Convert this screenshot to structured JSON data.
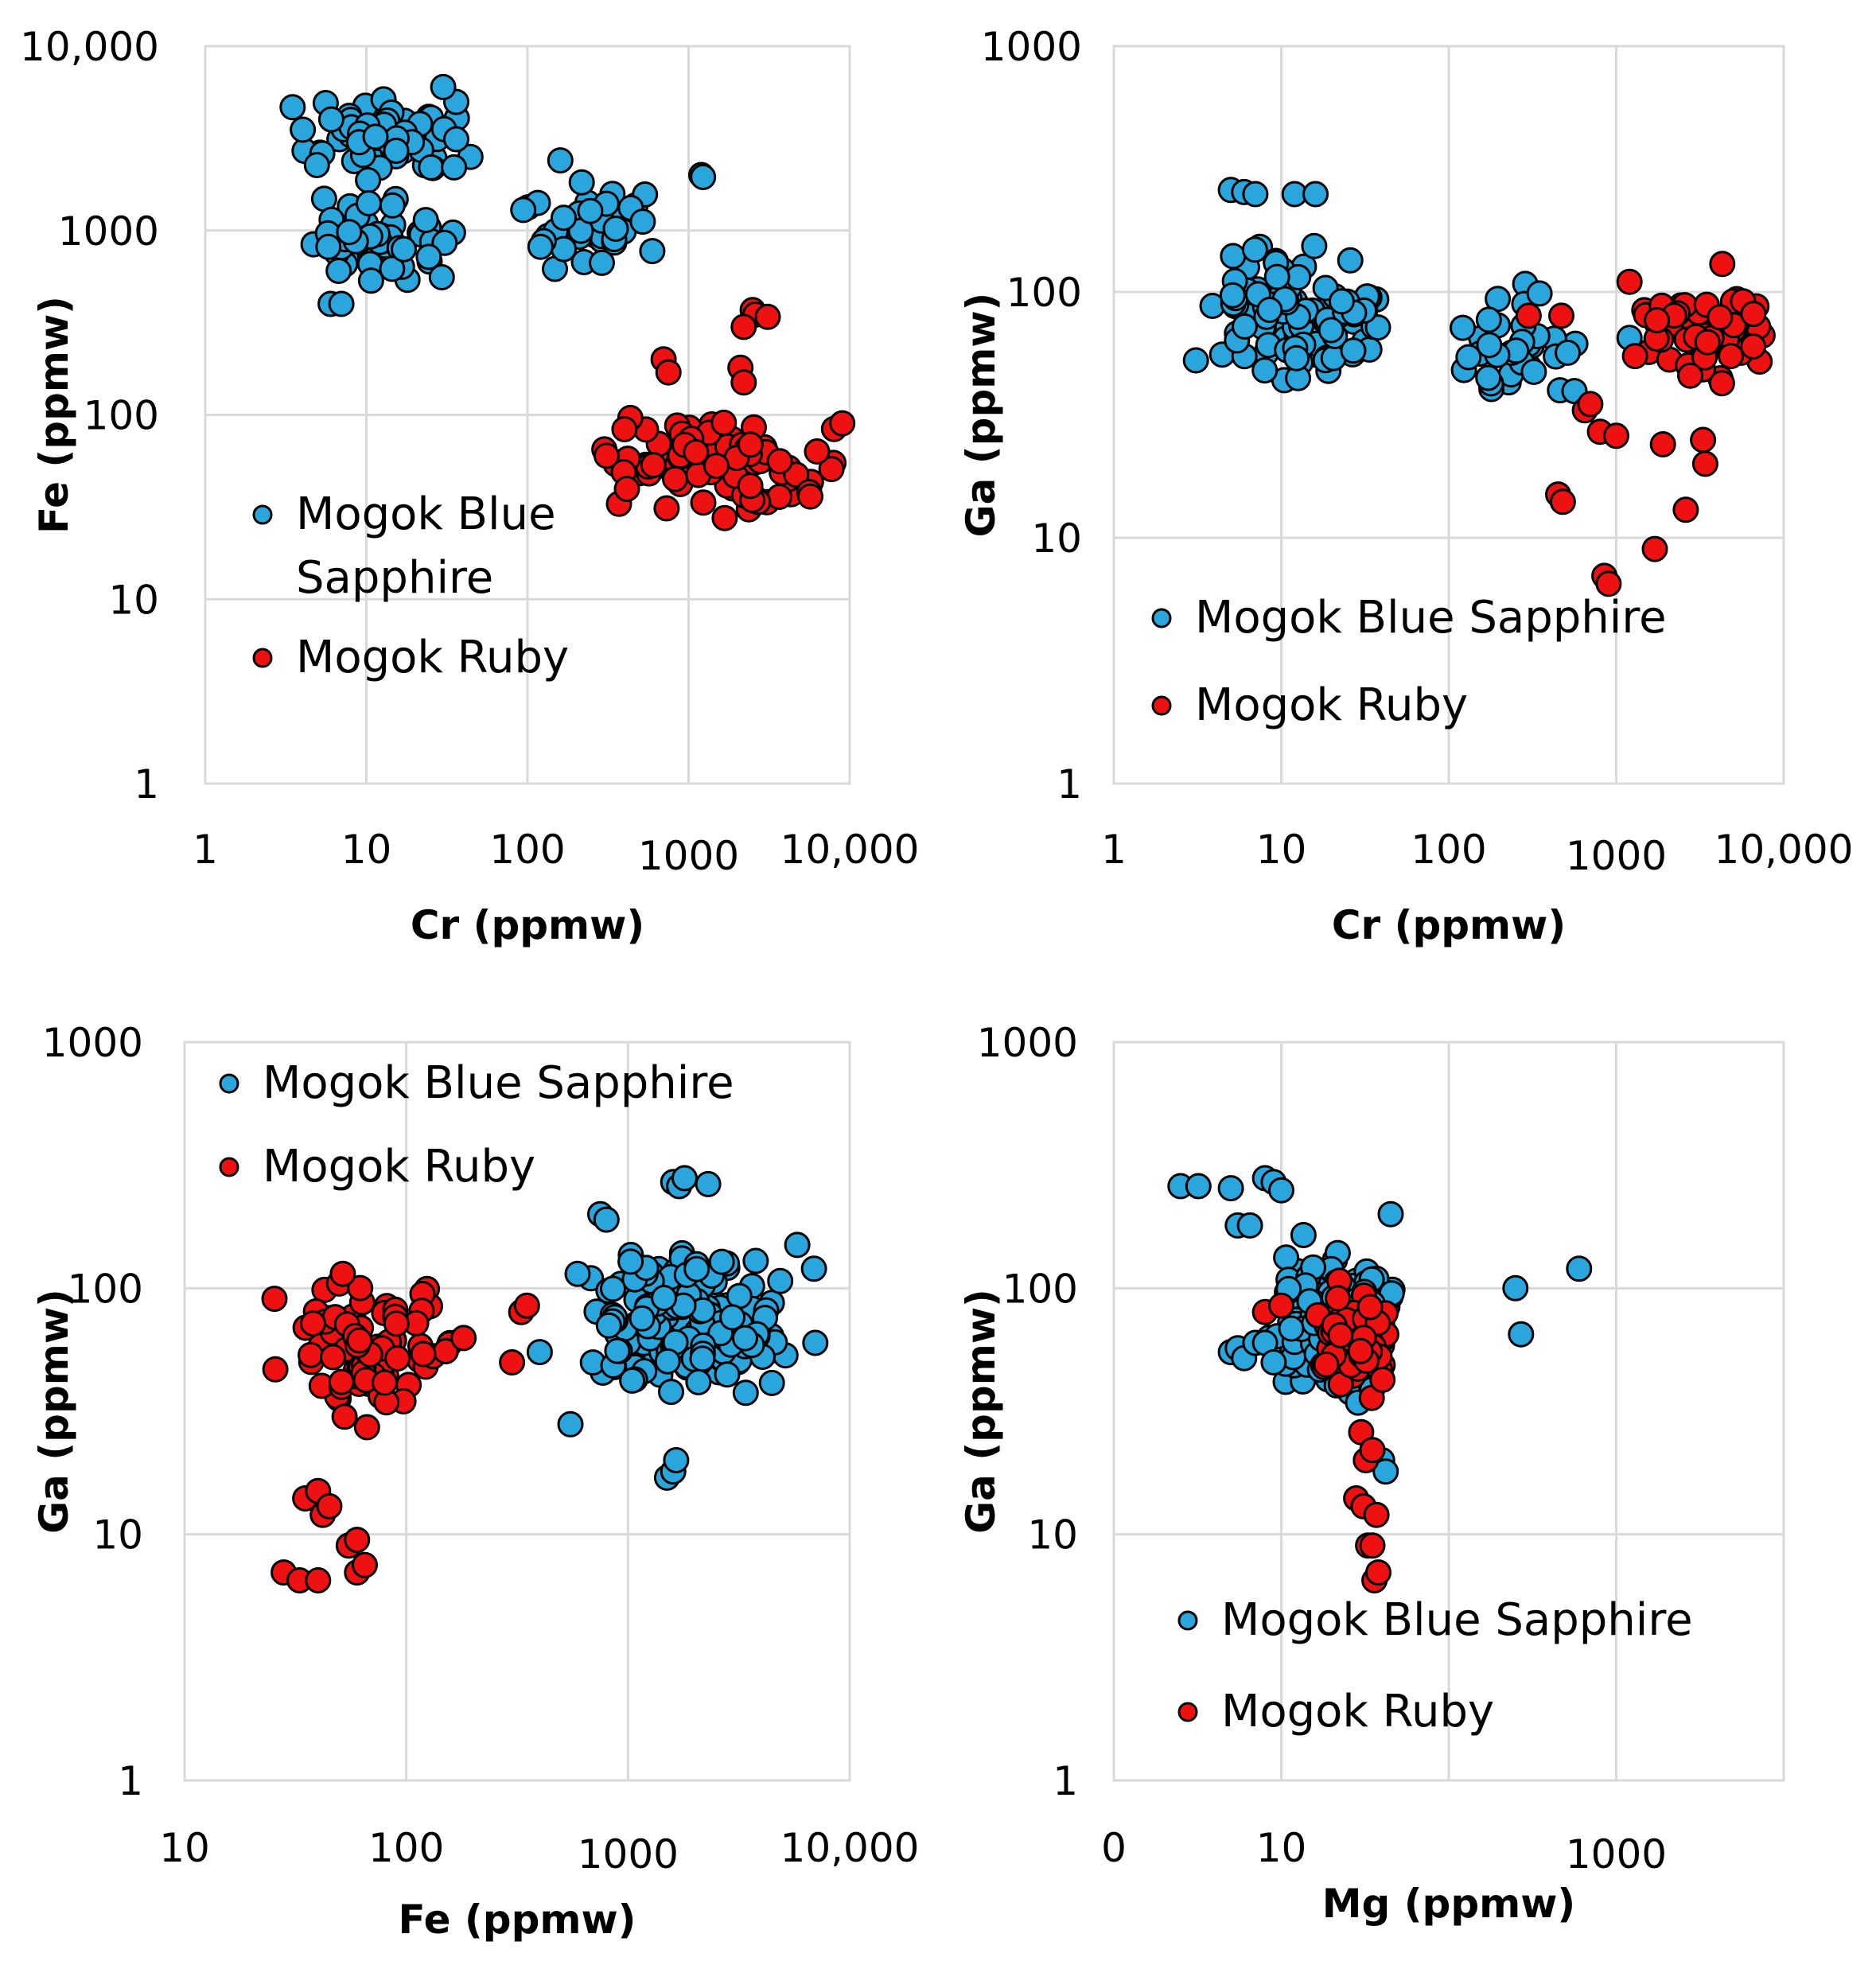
{
  "colors": {
    "sapphire": "#2aa6dd",
    "ruby": "#ee1111",
    "grid": "#d9d9d9"
  },
  "chart_data": [
    {
      "type": "scatter",
      "panel": "top-left",
      "xlabel": "Cr (ppmw)",
      "ylabel": "Fe (ppmw)",
      "xscale": "log",
      "yscale": "log",
      "xlim": [
        1,
        10000
      ],
      "ylim": [
        1,
        10000
      ],
      "xticks": [
        "1",
        "10",
        "100",
        "1000",
        "10,000"
      ],
      "yticks": [
        "1",
        "10",
        "100",
        "1000",
        "10,000"
      ],
      "legend": {
        "position": "middle-left",
        "entries": [
          "Mogok Blue Sapphire",
          "Mogok Ruby"
        ],
        "lines": [
          [
            "Mogok Blue",
            "Sapphire"
          ],
          [
            "Mogok Ruby"
          ]
        ]
      },
      "series": [
        {
          "name": "Mogok Blue Sapphire",
          "color": "sapphire",
          "clusters": [
            {
              "x": [
                3,
                50
              ],
              "y": [
                1800,
                6000
              ],
              "n": 75
            },
            {
              "x": [
                3,
                40
              ],
              "y": [
                400,
                2000
              ],
              "n": 55
            },
            {
              "x": [
                80,
                700
              ],
              "y": [
                550,
                2400
              ],
              "n": 40
            }
          ],
          "points": [
            [
              1200,
              2000
            ],
            [
              1230,
              1950
            ],
            [
              160,
              2400
            ],
            [
              35,
              2200
            ],
            [
              6,
              400
            ],
            [
              7,
              400
            ],
            [
              30,
              6000
            ]
          ]
        },
        {
          "name": "Mogok Ruby",
          "color": "ruby",
          "clusters": [
            {
              "x": [
                300,
                9000
              ],
              "y": [
                23,
                130
              ],
              "n": 90
            }
          ],
          "points": [
            [
              2500,
              370
            ],
            [
              2600,
              350
            ],
            [
              3100,
              340
            ],
            [
              2200,
              300
            ],
            [
              700,
              200
            ],
            [
              750,
              170
            ],
            [
              2100,
              180
            ],
            [
              2200,
              150
            ],
            [
              9000,
              90
            ],
            [
              300,
              65
            ],
            [
              310,
              60
            ]
          ]
        }
      ]
    },
    {
      "type": "scatter",
      "panel": "top-right",
      "xlabel": "Cr (ppmw)",
      "ylabel": "Ga (ppmw)",
      "xscale": "log",
      "yscale": "log",
      "xlim": [
        1,
        10000
      ],
      "ylim": [
        1,
        1000
      ],
      "xticks": [
        "1",
        "10",
        "100",
        "1000",
        "10,000"
      ],
      "yticks": [
        "1",
        "10",
        "100",
        "1000"
      ],
      "legend": {
        "position": "bottom-left",
        "entries": [
          "Mogok Blue Sapphire",
          "Mogok Ruby"
        ],
        "lines": [
          [
            "Mogok Blue Sapphire"
          ],
          [
            "Mogok Ruby"
          ]
        ]
      },
      "series": [
        {
          "name": "Mogok Blue Sapphire",
          "color": "sapphire",
          "clusters": [
            {
              "x": [
                3,
                50
              ],
              "y": [
                35,
                180
              ],
              "n": 110
            },
            {
              "x": [
                90,
                700
              ],
              "y": [
                30,
                130
              ],
              "n": 35
            }
          ],
          "points": [
            [
              5,
              260
            ],
            [
              6,
              255
            ],
            [
              7,
              250
            ],
            [
              12,
              250
            ],
            [
              16,
              250
            ],
            [
              1200,
              65
            ]
          ]
        },
        {
          "name": "Mogok Ruby",
          "color": "ruby",
          "clusters": [
            {
              "x": [
                1200,
                9000
              ],
              "y": [
                35,
                120
              ],
              "n": 60
            }
          ],
          "points": [
            [
              300,
              80
            ],
            [
              650,
              33
            ],
            [
              700,
              35
            ],
            [
              800,
              27
            ],
            [
              1000,
              26
            ],
            [
              450,
              15
            ],
            [
              480,
              14
            ],
            [
              850,
              7
            ],
            [
              900,
              6.5
            ],
            [
              1700,
              9
            ],
            [
              2600,
              13
            ],
            [
              3300,
              25
            ],
            [
              3400,
              20
            ],
            [
              1900,
              24
            ],
            [
              1200,
              110
            ],
            [
              4300,
              130
            ],
            [
              470,
              80
            ]
          ]
        }
      ]
    },
    {
      "type": "scatter",
      "panel": "bottom-left",
      "xlabel": "Fe (ppmw)",
      "ylabel": "Ga (ppmw)",
      "xscale": "log",
      "yscale": "log",
      "xlim": [
        10,
        10000
      ],
      "ylim": [
        1,
        1000
      ],
      "xticks": [
        "10",
        "100",
        "1000",
        "10,000"
      ],
      "yticks": [
        "1",
        "10",
        "100",
        "1000"
      ],
      "legend": {
        "position": "top-left",
        "entries": [
          "Mogok Blue Sapphire",
          "Mogok Ruby"
        ],
        "lines": [
          [
            "Mogok Blue Sapphire"
          ],
          [
            "Mogok Ruby"
          ]
        ]
      },
      "series": [
        {
          "name": "Mogok Blue Sapphire",
          "color": "sapphire",
          "clusters": [
            {
              "x": [
                500,
                6000
              ],
              "y": [
                30,
                170
              ],
              "n": 200
            }
          ],
          "points": [
            [
              1600,
              270
            ],
            [
              1700,
              260
            ],
            [
              1800,
              280
            ],
            [
              2300,
              265
            ],
            [
              750,
              200
            ],
            [
              800,
              190
            ],
            [
              1500,
              17
            ],
            [
              1600,
              18
            ],
            [
              1650,
              20
            ],
            [
              6900,
              120
            ],
            [
              7000,
              60
            ],
            [
              5800,
              150
            ],
            [
              550,
              28
            ],
            [
              400,
              55
            ]
          ]
        },
        {
          "name": "Mogok Ruby",
          "color": "ruby",
          "clusters": [
            {
              "x": [
                22,
                200
              ],
              "y": [
                25,
                130
              ],
              "n": 85
            }
          ],
          "points": [
            [
              35,
              14
            ],
            [
              40,
              15
            ],
            [
              42,
              12
            ],
            [
              45,
              13
            ],
            [
              55,
              9
            ],
            [
              60,
              9.5
            ],
            [
              28,
              7
            ],
            [
              33,
              6.5
            ],
            [
              40,
              6.5
            ],
            [
              60,
              7
            ],
            [
              65,
              7.5
            ],
            [
              300,
              50
            ],
            [
              330,
              80
            ],
            [
              350,
              85
            ]
          ]
        }
      ]
    },
    {
      "type": "scatter",
      "panel": "bottom-right",
      "xlabel": "Mg (ppmw)",
      "ylabel": "Ga (ppmw)",
      "xscale": "log",
      "yscale": "log",
      "xlim": [
        1,
        10000
      ],
      "ylim": [
        1,
        1000
      ],
      "xticks": [
        "0",
        "10",
        "1000"
      ],
      "yticks": [
        "1",
        "10",
        "100",
        "1000"
      ],
      "legend": {
        "position": "bottom-left",
        "entries": [
          "Mogok Blue Sapphire",
          "Mogok Ruby"
        ],
        "lines": [
          [
            "Mogok Blue Sapphire"
          ],
          [
            "Mogok Ruby"
          ]
        ]
      },
      "series": [
        {
          "name": "Mogok Blue Sapphire",
          "color": "sapphire",
          "clusters": [
            {
              "x": [
                8,
                50
              ],
              "y": [
                30,
                180
              ],
              "n": 170
            }
          ],
          "points": [
            [
              2.5,
              260
            ],
            [
              3.2,
              260
            ],
            [
              5,
              255
            ],
            [
              5.5,
              180
            ],
            [
              6.5,
              180
            ],
            [
              8,
              280
            ],
            [
              9,
              270
            ],
            [
              10,
              250
            ],
            [
              5,
              55
            ],
            [
              5.5,
              57
            ],
            [
              6,
              52
            ],
            [
              7,
              60
            ],
            [
              8,
              60
            ],
            [
              9,
              50
            ],
            [
              40,
              20
            ],
            [
              42,
              18
            ],
            [
              45,
              200
            ],
            [
              250,
              100
            ],
            [
              600,
              120
            ],
            [
              270,
              65
            ]
          ]
        },
        {
          "name": "Mogok Ruby",
          "color": "ruby",
          "clusters": [
            {
              "x": [
                15,
                45
              ],
              "y": [
                30,
                130
              ],
              "n": 70
            }
          ],
          "points": [
            [
              8,
              80
            ],
            [
              10,
              85
            ],
            [
              30,
              26
            ],
            [
              32,
              20
            ],
            [
              35,
              22
            ],
            [
              28,
              14
            ],
            [
              31,
              13
            ],
            [
              33,
              9
            ],
            [
              35,
              9
            ],
            [
              36,
              6.5
            ],
            [
              38,
              7
            ],
            [
              37,
              12
            ]
          ]
        }
      ]
    }
  ]
}
